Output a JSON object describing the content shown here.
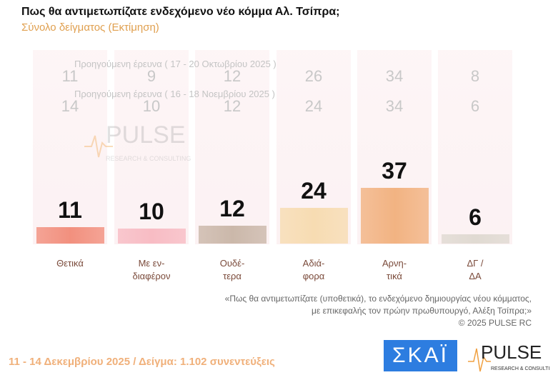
{
  "title": "Πως θα αντιμετωπίζατε ενδεχόμενο νέο κόμμα Αλ. Τσίπρα;",
  "subtitle": "Σύνολο δείγματος  (Εκτίμηση)",
  "chart_data": {
    "type": "bar",
    "categories": [
      "Θετικά",
      "Με εν-\nδιαφέρον",
      "Ουδέ-\nτερα",
      "Αδιά-\nφορα",
      "Αρνη-\nτικά",
      "ΔΓ /\nΔΑ"
    ],
    "series": [
      {
        "values": [
          11,
          10,
          12,
          24,
          37,
          6
        ]
      }
    ],
    "previous": [
      {
        "label": "Προηγούμενη έρευνα ( 17 - 20 Οκτωβρίου 2025 )",
        "values": [
          11,
          9,
          12,
          26,
          34,
          8
        ]
      },
      {
        "label": "Προηγούμενη έρευνα ( 16 - 18 Νοεμβρίου 2025 )",
        "values": [
          14,
          10,
          12,
          24,
          34,
          6
        ]
      }
    ],
    "colors": [
      "#f2907e",
      "#f8bcc4",
      "#cbb8aa",
      "#f7dcb2",
      "#f2b382",
      "#e0dad2"
    ],
    "ylim": [
      0,
      40
    ]
  },
  "note": {
    "line1": "«Πως θα αντιμετωπίζατε (υποθετικά), το ενδεχόμενο δημιουργίας νέου κόμματος,",
    "line2": "με επικεφαλής τον πρώην πρωθυπουργό, Αλέξη Τσίπρα;»",
    "line3": "©  2025  PULSE RC"
  },
  "footer": "11 - 14 Δεκεμβρίου 2025  /  Δείγμα:  1.102 συνεντεύξεις",
  "logos": {
    "skai": "ΣΚΑΪ",
    "pulse": "PULSE",
    "pulse_sub": "RESEARCH & CONSULTING"
  }
}
